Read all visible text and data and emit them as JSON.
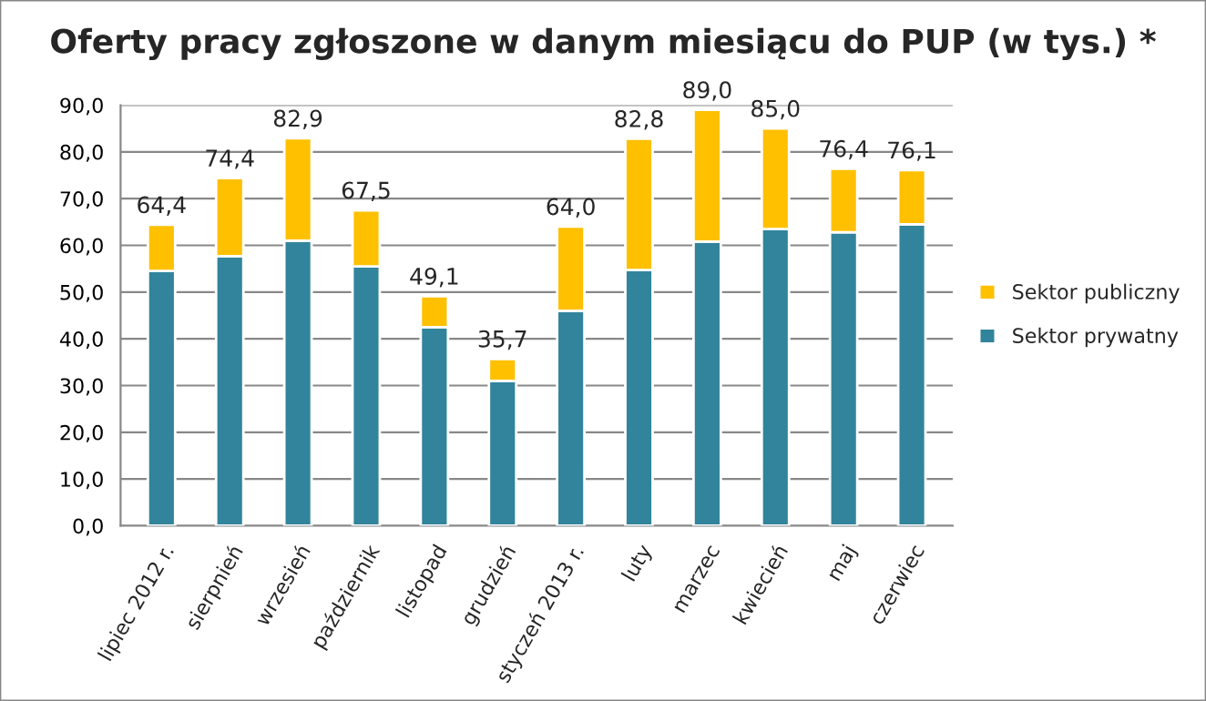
{
  "chart_data": {
    "type": "bar",
    "title": "Oferty pracy zgłoszone w danym miesiącu do PUP (w tys.) *",
    "categories": [
      "lipiec 2012 r.",
      "sierpnień",
      "wrzesień",
      "październik",
      "listopad",
      "grudzień",
      "styczeń 2013 r.",
      "luty",
      "marzec",
      "kwiecień",
      "maj",
      "czerwiec"
    ],
    "series": [
      {
        "name": "Sektor prywatny",
        "color": "#31849b",
        "values": [
          54.5,
          57.7,
          61.0,
          55.5,
          42.5,
          31.0,
          46.0,
          54.7,
          60.8,
          63.5,
          62.8,
          64.5
        ]
      },
      {
        "name": "Sektor publiczny",
        "color": "#ffc000",
        "values": [
          9.9,
          16.7,
          21.9,
          12.0,
          6.6,
          4.7,
          18.0,
          28.1,
          28.2,
          21.5,
          13.6,
          11.6
        ]
      }
    ],
    "stacked": true,
    "totals": [
      "64,4",
      "74,4",
      "82,9",
      "67,5",
      "49,1",
      "35,7",
      "64,0",
      "82,8",
      "89,0",
      "85,0",
      "76,4",
      "76,1"
    ],
    "ylim": [
      0,
      90
    ],
    "yticks": [
      {
        "value": 0,
        "label": "0,0"
      },
      {
        "value": 10,
        "label": "10,0"
      },
      {
        "value": 20,
        "label": "20,0"
      },
      {
        "value": 30,
        "label": "30,0"
      },
      {
        "value": 40,
        "label": "40,0"
      },
      {
        "value": 50,
        "label": "50,0"
      },
      {
        "value": 60,
        "label": "60,0"
      },
      {
        "value": 70,
        "label": "70,0"
      },
      {
        "value": 80,
        "label": "80,0"
      },
      {
        "value": 90,
        "label": "90,0"
      }
    ],
    "grid": "y",
    "legend": "right"
  }
}
